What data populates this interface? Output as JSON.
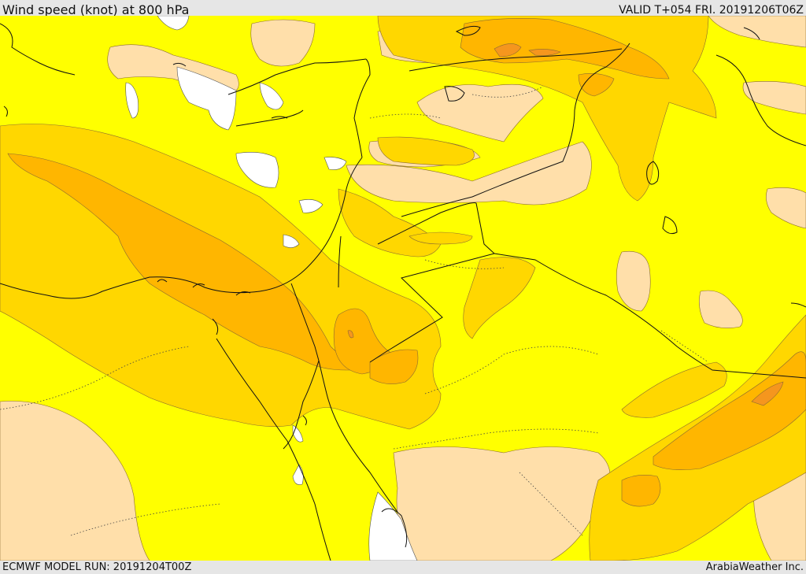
{
  "header": {
    "title": "Wind speed (knot) at 800 hPa",
    "valid": "VALID T+054 FRI. 20191206T06Z"
  },
  "footer": {
    "model_run": "ECMWF MODEL RUN: 20191204T00Z",
    "credit": "ArabiaWeather Inc."
  },
  "colors": {
    "band_0": "#ffffff",
    "band_1": "#ffdfaa",
    "band_2": "#ffff00",
    "band_3": "#ffd700",
    "band_4": "#ffb600",
    "band_5": "#f5961e"
  }
}
